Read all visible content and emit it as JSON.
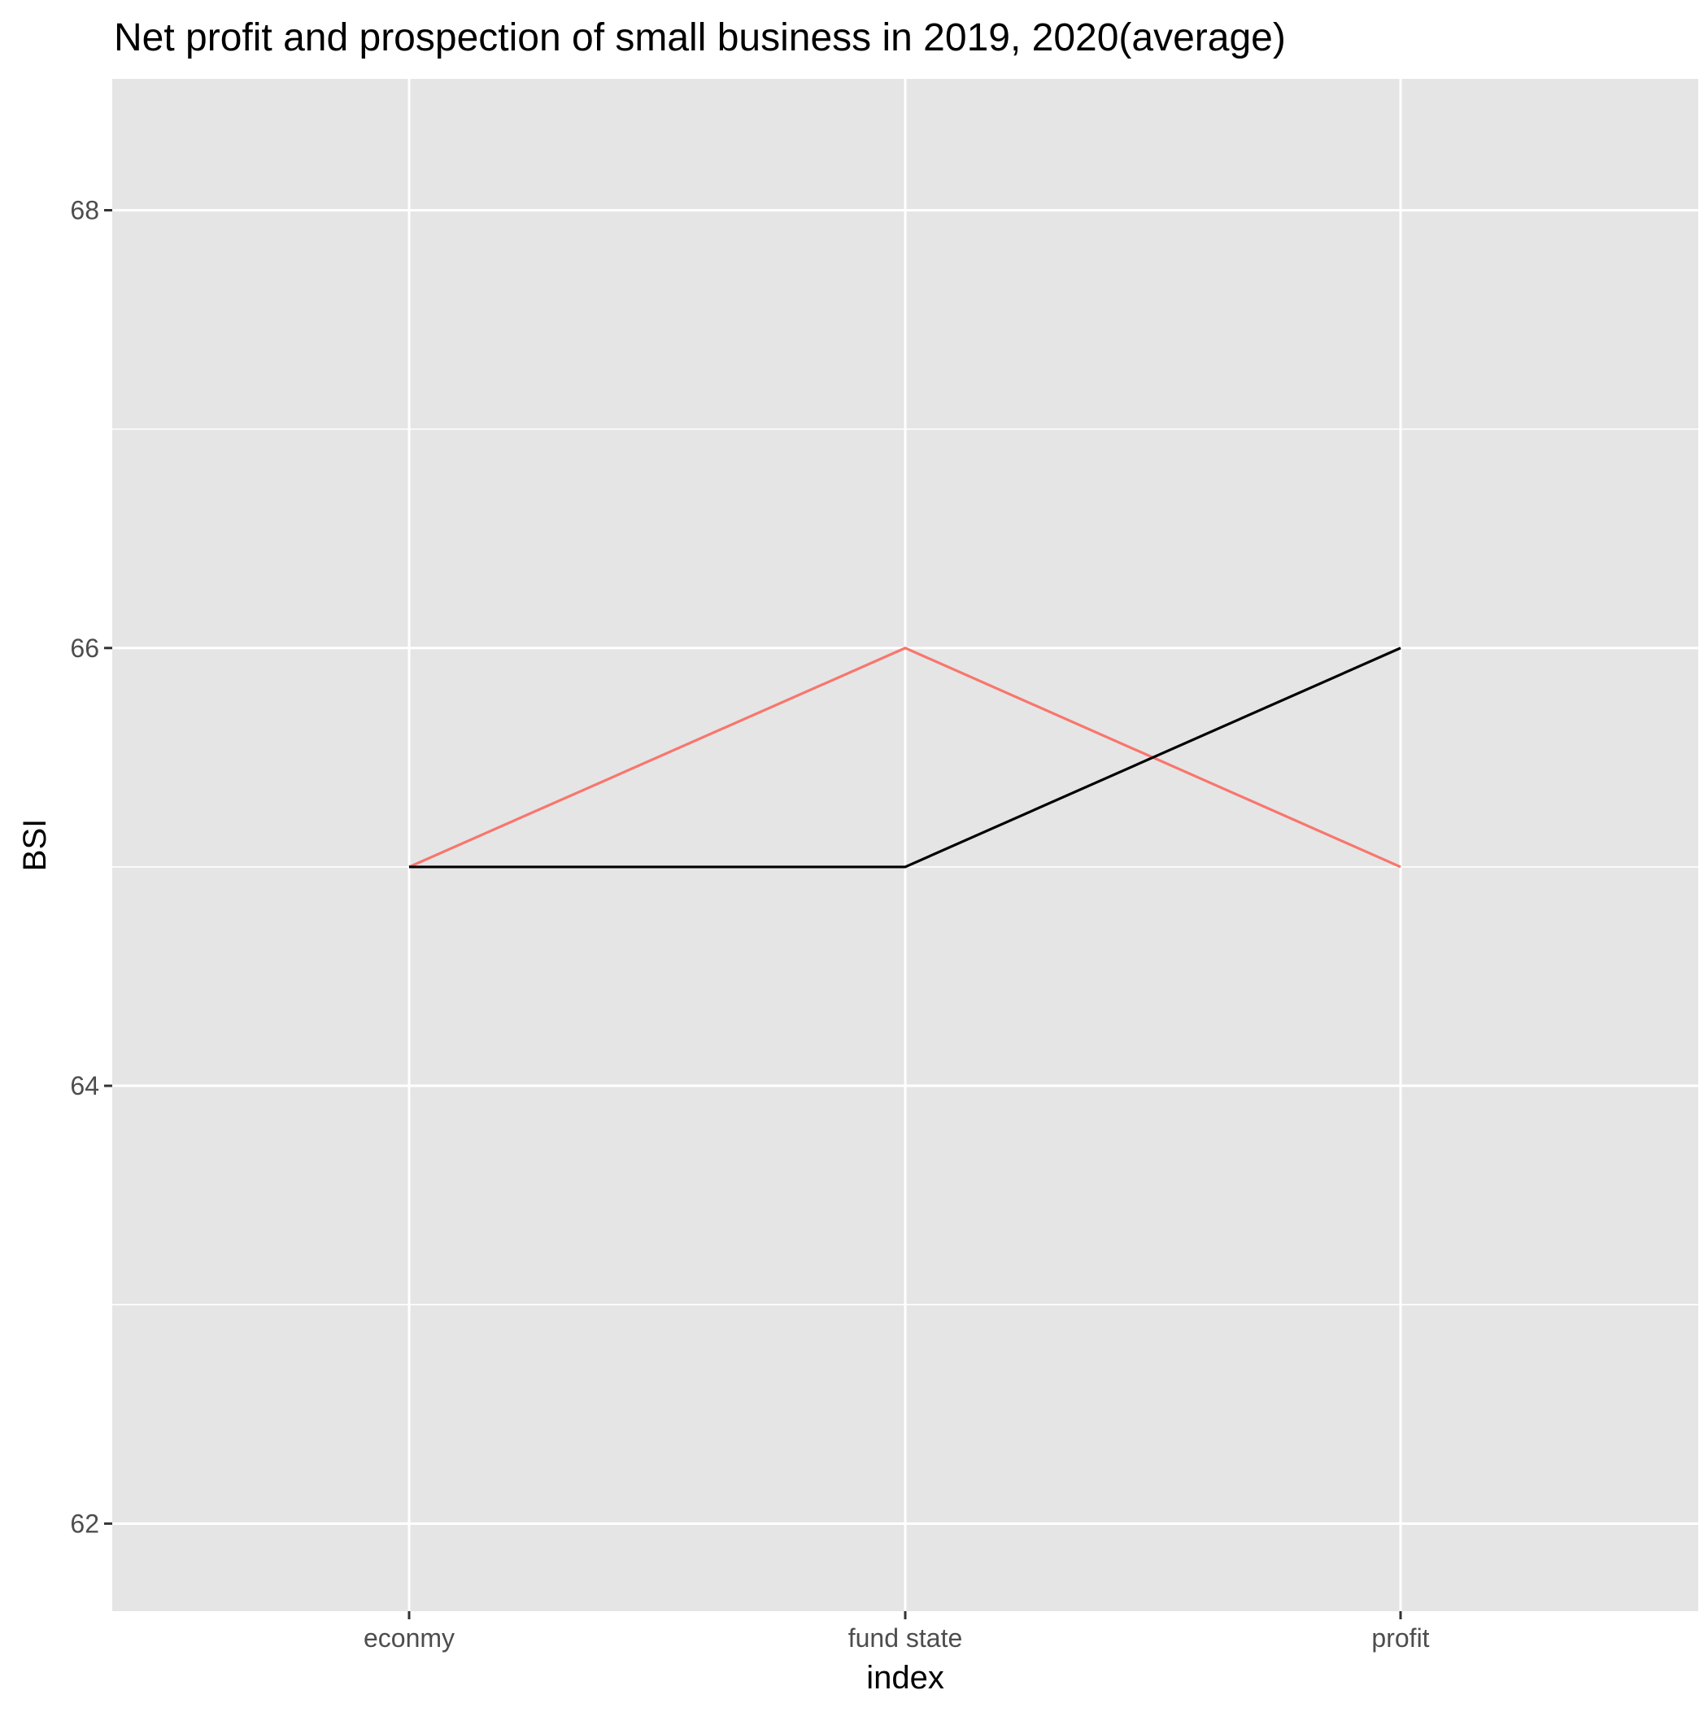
{
  "chart_data": {
    "type": "line",
    "title": "Net profit and prospection of small business in 2019, 2020(average)",
    "xlabel": "index",
    "ylabel": "BSI",
    "categories": [
      "econmy",
      "fund state",
      "profit"
    ],
    "ylim": [
      61.6,
      68.6
    ],
    "yticks": [
      62,
      64,
      66,
      68
    ],
    "grid": true,
    "legend": "none",
    "colors": {
      "panel_background": "#e5e5e5",
      "grid": "#ffffff",
      "tick_mark": "#333333",
      "tick_text": "#4d4d4d"
    },
    "series": [
      {
        "color": "#f8766d",
        "values": [
          65,
          66,
          65
        ]
      },
      {
        "color": "#000000",
        "values": [
          65,
          65,
          66
        ]
      }
    ]
  }
}
